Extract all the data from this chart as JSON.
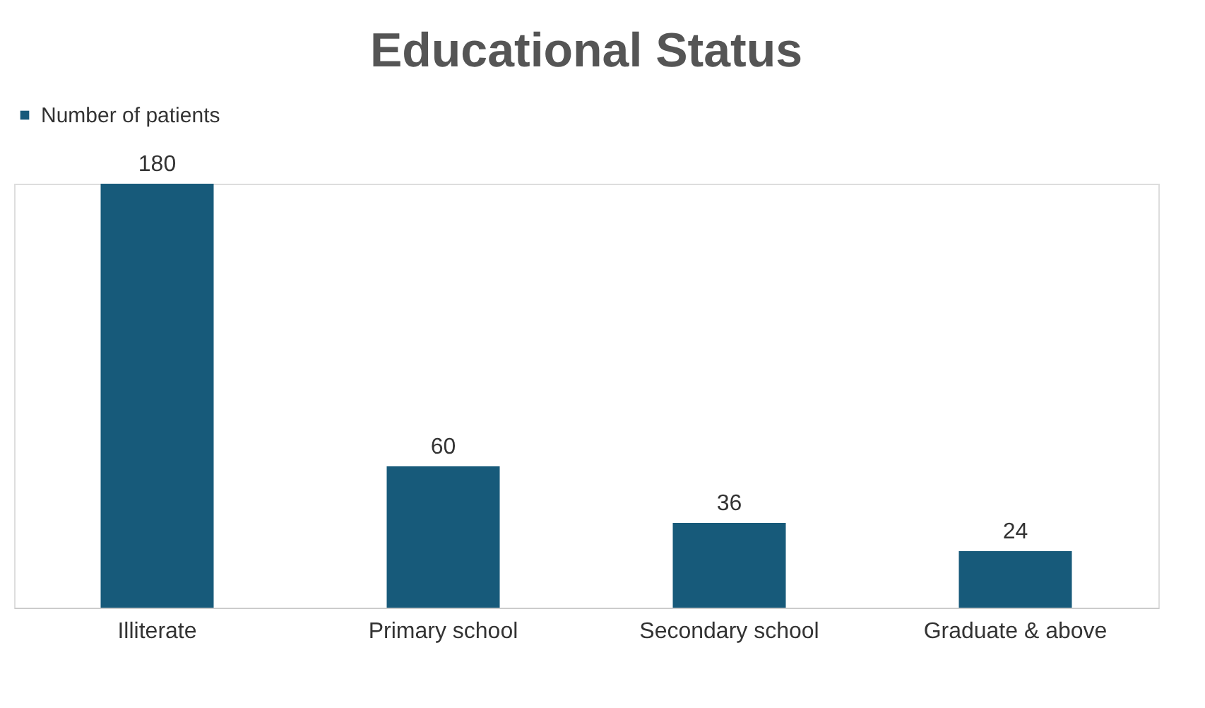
{
  "chart_data": {
    "type": "bar",
    "title": "Educational Status",
    "categories": [
      "Illiterate",
      "Primary school",
      "Secondary school",
      "Graduate & above"
    ],
    "series": [
      {
        "name": "Number of patients",
        "color": "#175a7a",
        "values": [
          180,
          60,
          36,
          24
        ]
      }
    ],
    "data_labels": true,
    "legend": "top",
    "grid": false
  }
}
